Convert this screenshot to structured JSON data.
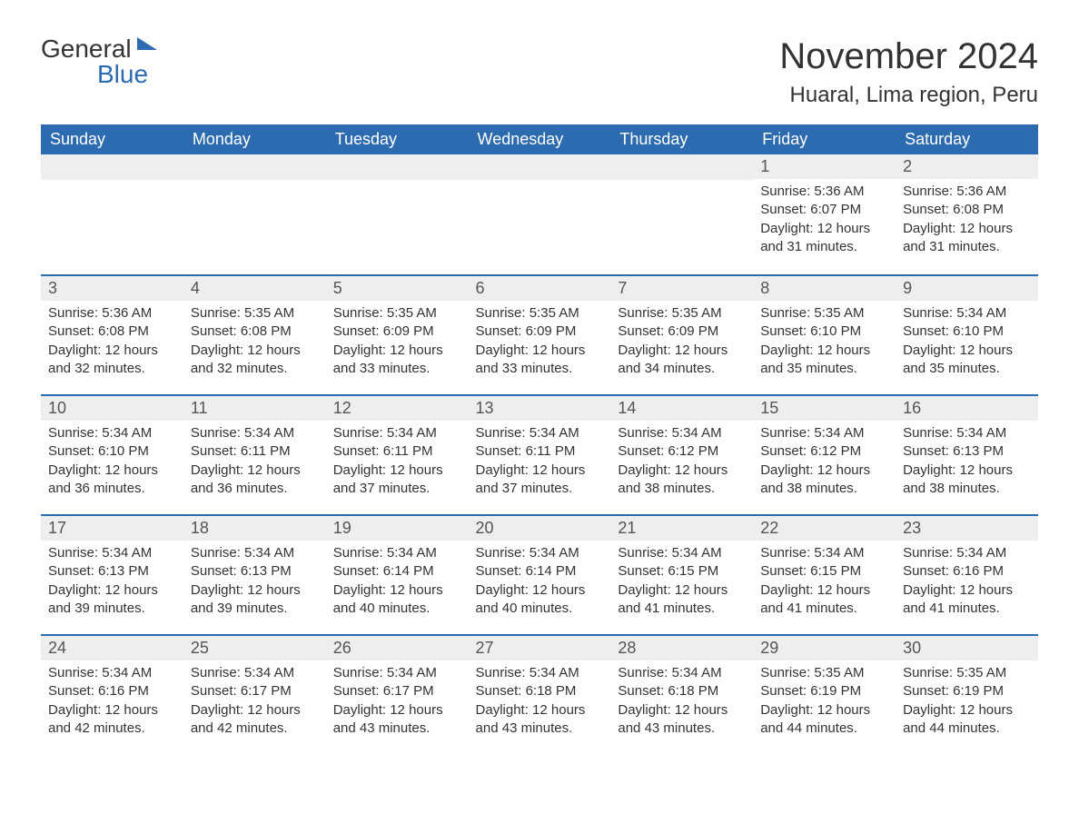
{
  "logo": {
    "word1": "General",
    "word2": "Blue"
  },
  "header": {
    "title": "November 2024",
    "location": "Huaral, Lima region, Peru"
  },
  "colors": {
    "brand_blue": "#2d6bb0",
    "header_row_bg": "#eeeeee",
    "text": "#333333",
    "white": "#ffffff"
  },
  "typography": {
    "title_fontsize_pt": 30,
    "location_fontsize_pt": 18,
    "weekday_fontsize_pt": 14,
    "daynum_fontsize_pt": 14,
    "body_fontsize_pt": 11
  },
  "calendar": {
    "weekdays": [
      "Sunday",
      "Monday",
      "Tuesday",
      "Wednesday",
      "Thursday",
      "Friday",
      "Saturday"
    ],
    "year": 2024,
    "month": 11,
    "first_weekday_index": 5,
    "labels": {
      "sunrise_prefix": "Sunrise: ",
      "sunset_prefix": "Sunset: ",
      "daylight_prefix": "Daylight: ",
      "daylight_join": " hours and ",
      "daylight_suffix": " minutes."
    },
    "days": [
      {
        "n": 1,
        "sunrise": "5:36 AM",
        "sunset": "6:07 PM",
        "dl_h": 12,
        "dl_m": 31
      },
      {
        "n": 2,
        "sunrise": "5:36 AM",
        "sunset": "6:08 PM",
        "dl_h": 12,
        "dl_m": 31
      },
      {
        "n": 3,
        "sunrise": "5:36 AM",
        "sunset": "6:08 PM",
        "dl_h": 12,
        "dl_m": 32
      },
      {
        "n": 4,
        "sunrise": "5:35 AM",
        "sunset": "6:08 PM",
        "dl_h": 12,
        "dl_m": 32
      },
      {
        "n": 5,
        "sunrise": "5:35 AM",
        "sunset": "6:09 PM",
        "dl_h": 12,
        "dl_m": 33
      },
      {
        "n": 6,
        "sunrise": "5:35 AM",
        "sunset": "6:09 PM",
        "dl_h": 12,
        "dl_m": 33
      },
      {
        "n": 7,
        "sunrise": "5:35 AM",
        "sunset": "6:09 PM",
        "dl_h": 12,
        "dl_m": 34
      },
      {
        "n": 8,
        "sunrise": "5:35 AM",
        "sunset": "6:10 PM",
        "dl_h": 12,
        "dl_m": 35
      },
      {
        "n": 9,
        "sunrise": "5:34 AM",
        "sunset": "6:10 PM",
        "dl_h": 12,
        "dl_m": 35
      },
      {
        "n": 10,
        "sunrise": "5:34 AM",
        "sunset": "6:10 PM",
        "dl_h": 12,
        "dl_m": 36
      },
      {
        "n": 11,
        "sunrise": "5:34 AM",
        "sunset": "6:11 PM",
        "dl_h": 12,
        "dl_m": 36
      },
      {
        "n": 12,
        "sunrise": "5:34 AM",
        "sunset": "6:11 PM",
        "dl_h": 12,
        "dl_m": 37
      },
      {
        "n": 13,
        "sunrise": "5:34 AM",
        "sunset": "6:11 PM",
        "dl_h": 12,
        "dl_m": 37
      },
      {
        "n": 14,
        "sunrise": "5:34 AM",
        "sunset": "6:12 PM",
        "dl_h": 12,
        "dl_m": 38
      },
      {
        "n": 15,
        "sunrise": "5:34 AM",
        "sunset": "6:12 PM",
        "dl_h": 12,
        "dl_m": 38
      },
      {
        "n": 16,
        "sunrise": "5:34 AM",
        "sunset": "6:13 PM",
        "dl_h": 12,
        "dl_m": 38
      },
      {
        "n": 17,
        "sunrise": "5:34 AM",
        "sunset": "6:13 PM",
        "dl_h": 12,
        "dl_m": 39
      },
      {
        "n": 18,
        "sunrise": "5:34 AM",
        "sunset": "6:13 PM",
        "dl_h": 12,
        "dl_m": 39
      },
      {
        "n": 19,
        "sunrise": "5:34 AM",
        "sunset": "6:14 PM",
        "dl_h": 12,
        "dl_m": 40
      },
      {
        "n": 20,
        "sunrise": "5:34 AM",
        "sunset": "6:14 PM",
        "dl_h": 12,
        "dl_m": 40
      },
      {
        "n": 21,
        "sunrise": "5:34 AM",
        "sunset": "6:15 PM",
        "dl_h": 12,
        "dl_m": 41
      },
      {
        "n": 22,
        "sunrise": "5:34 AM",
        "sunset": "6:15 PM",
        "dl_h": 12,
        "dl_m": 41
      },
      {
        "n": 23,
        "sunrise": "5:34 AM",
        "sunset": "6:16 PM",
        "dl_h": 12,
        "dl_m": 41
      },
      {
        "n": 24,
        "sunrise": "5:34 AM",
        "sunset": "6:16 PM",
        "dl_h": 12,
        "dl_m": 42
      },
      {
        "n": 25,
        "sunrise": "5:34 AM",
        "sunset": "6:17 PM",
        "dl_h": 12,
        "dl_m": 42
      },
      {
        "n": 26,
        "sunrise": "5:34 AM",
        "sunset": "6:17 PM",
        "dl_h": 12,
        "dl_m": 43
      },
      {
        "n": 27,
        "sunrise": "5:34 AM",
        "sunset": "6:18 PM",
        "dl_h": 12,
        "dl_m": 43
      },
      {
        "n": 28,
        "sunrise": "5:34 AM",
        "sunset": "6:18 PM",
        "dl_h": 12,
        "dl_m": 43
      },
      {
        "n": 29,
        "sunrise": "5:35 AM",
        "sunset": "6:19 PM",
        "dl_h": 12,
        "dl_m": 44
      },
      {
        "n": 30,
        "sunrise": "5:35 AM",
        "sunset": "6:19 PM",
        "dl_h": 12,
        "dl_m": 44
      }
    ]
  }
}
